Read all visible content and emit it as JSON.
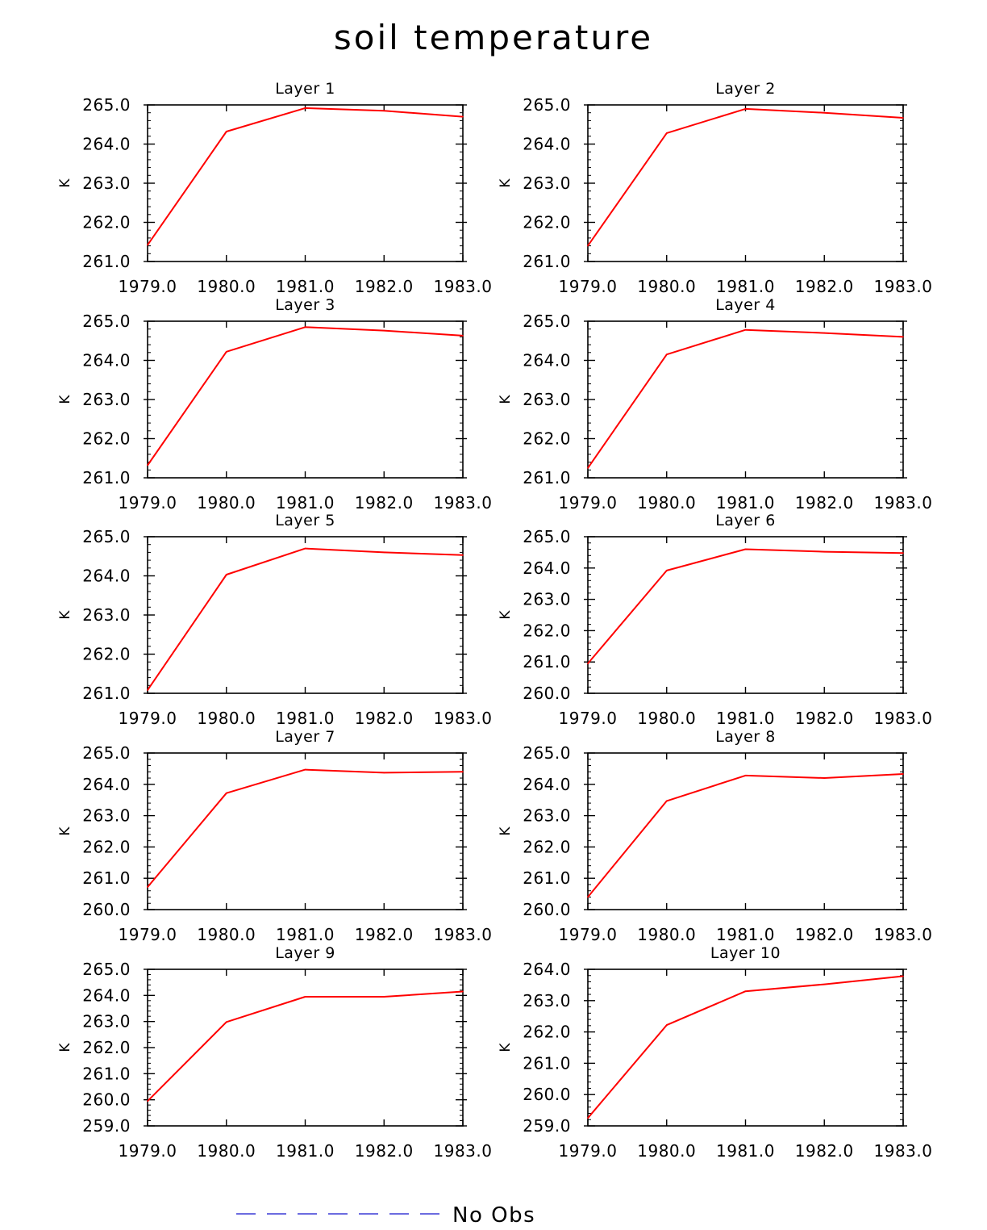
{
  "title": "soil temperature",
  "colors": {
    "series": "#ff0000",
    "legend_line": "#3b3bd6",
    "axis": "#000000"
  },
  "legend": {
    "label": "No Obs"
  },
  "chart_data": [
    {
      "type": "line",
      "title": "Layer 1",
      "ylabel": "K",
      "x": [
        1979,
        1980,
        1981,
        1982,
        1983
      ],
      "xlim": [
        1979,
        1983
      ],
      "xticks": [
        "1979.0",
        "1980.0",
        "1981.0",
        "1982.0",
        "1983.0"
      ],
      "ylim": [
        261,
        265
      ],
      "yticks": [
        "261.0",
        "262.0",
        "263.0",
        "264.0",
        "265.0"
      ],
      "series": [
        {
          "values": [
            261.42,
            264.32,
            264.92,
            264.85,
            264.7
          ]
        }
      ]
    },
    {
      "type": "line",
      "title": "Layer 2",
      "ylabel": "K",
      "x": [
        1979,
        1980,
        1981,
        1982,
        1983
      ],
      "xlim": [
        1979,
        1983
      ],
      "xticks": [
        "1979.0",
        "1980.0",
        "1981.0",
        "1982.0",
        "1983.0"
      ],
      "ylim": [
        261,
        265
      ],
      "yticks": [
        "261.0",
        "262.0",
        "263.0",
        "264.0",
        "265.0"
      ],
      "series": [
        {
          "values": [
            261.4,
            264.28,
            264.9,
            264.8,
            264.67
          ]
        }
      ]
    },
    {
      "type": "line",
      "title": "Layer 3",
      "ylabel": "K",
      "x": [
        1979,
        1980,
        1981,
        1982,
        1983
      ],
      "xlim": [
        1979,
        1983
      ],
      "xticks": [
        "1979.0",
        "1980.0",
        "1981.0",
        "1982.0",
        "1983.0"
      ],
      "ylim": [
        261,
        265
      ],
      "yticks": [
        "261.0",
        "262.0",
        "263.0",
        "264.0",
        "265.0"
      ],
      "series": [
        {
          "values": [
            261.32,
            264.22,
            264.85,
            264.76,
            264.63
          ]
        }
      ]
    },
    {
      "type": "line",
      "title": "Layer 4",
      "ylabel": "K",
      "x": [
        1979,
        1980,
        1981,
        1982,
        1983
      ],
      "xlim": [
        1979,
        1983
      ],
      "xticks": [
        "1979.0",
        "1980.0",
        "1981.0",
        "1982.0",
        "1983.0"
      ],
      "ylim": [
        261,
        265
      ],
      "yticks": [
        "261.0",
        "262.0",
        "263.0",
        "264.0",
        "265.0"
      ],
      "series": [
        {
          "values": [
            261.25,
            264.15,
            264.78,
            264.7,
            264.6
          ]
        }
      ]
    },
    {
      "type": "line",
      "title": "Layer 5",
      "ylabel": "K",
      "x": [
        1979,
        1980,
        1981,
        1982,
        1983
      ],
      "xlim": [
        1979,
        1983
      ],
      "xticks": [
        "1979.0",
        "1980.0",
        "1981.0",
        "1982.0",
        "1983.0"
      ],
      "ylim": [
        261,
        265
      ],
      "yticks": [
        "261.0",
        "262.0",
        "263.0",
        "264.0",
        "265.0"
      ],
      "series": [
        {
          "values": [
            261.08,
            264.03,
            264.7,
            264.6,
            264.53
          ]
        }
      ]
    },
    {
      "type": "line",
      "title": "Layer 6",
      "ylabel": "K",
      "x": [
        1979,
        1980,
        1981,
        1982,
        1983
      ],
      "xlim": [
        1979,
        1983
      ],
      "xticks": [
        "1979.0",
        "1980.0",
        "1981.0",
        "1982.0",
        "1983.0"
      ],
      "ylim": [
        260,
        265
      ],
      "yticks": [
        "260.0",
        "261.0",
        "262.0",
        "263.0",
        "264.0",
        "265.0"
      ],
      "series": [
        {
          "values": [
            260.95,
            263.92,
            264.6,
            264.52,
            264.48
          ]
        }
      ]
    },
    {
      "type": "line",
      "title": "Layer 7",
      "ylabel": "K",
      "x": [
        1979,
        1980,
        1981,
        1982,
        1983
      ],
      "xlim": [
        1979,
        1983
      ],
      "xticks": [
        "1979.0",
        "1980.0",
        "1981.0",
        "1982.0",
        "1983.0"
      ],
      "ylim": [
        260,
        265
      ],
      "yticks": [
        "260.0",
        "261.0",
        "262.0",
        "263.0",
        "264.0",
        "265.0"
      ],
      "series": [
        {
          "values": [
            260.72,
            263.72,
            264.47,
            264.37,
            264.4
          ]
        }
      ]
    },
    {
      "type": "line",
      "title": "Layer 8",
      "ylabel": "K",
      "x": [
        1979,
        1980,
        1981,
        1982,
        1983
      ],
      "xlim": [
        1979,
        1983
      ],
      "xticks": [
        "1979.0",
        "1980.0",
        "1981.0",
        "1982.0",
        "1983.0"
      ],
      "ylim": [
        260,
        265
      ],
      "yticks": [
        "260.0",
        "261.0",
        "262.0",
        "263.0",
        "264.0",
        "265.0"
      ],
      "series": [
        {
          "values": [
            260.4,
            263.47,
            264.28,
            264.2,
            264.33
          ]
        }
      ]
    },
    {
      "type": "line",
      "title": "Layer 9",
      "ylabel": "K",
      "x": [
        1979,
        1980,
        1981,
        1982,
        1983
      ],
      "xlim": [
        1979,
        1983
      ],
      "xticks": [
        "1979.0",
        "1980.0",
        "1981.0",
        "1982.0",
        "1983.0"
      ],
      "ylim": [
        259,
        265
      ],
      "yticks": [
        "259.0",
        "260.0",
        "261.0",
        "262.0",
        "263.0",
        "264.0",
        "265.0"
      ],
      "series": [
        {
          "values": [
            259.95,
            262.98,
            263.95,
            263.95,
            264.15
          ]
        }
      ]
    },
    {
      "type": "line",
      "title": "Layer 10",
      "ylabel": "K",
      "x": [
        1979,
        1980,
        1981,
        1982,
        1983
      ],
      "xlim": [
        1979,
        1983
      ],
      "xticks": [
        "1979.0",
        "1980.0",
        "1981.0",
        "1982.0",
        "1983.0"
      ],
      "ylim": [
        259,
        264
      ],
      "yticks": [
        "259.0",
        "260.0",
        "261.0",
        "262.0",
        "263.0",
        "264.0"
      ],
      "series": [
        {
          "values": [
            259.25,
            262.22,
            263.3,
            263.52,
            263.78
          ]
        }
      ]
    }
  ]
}
